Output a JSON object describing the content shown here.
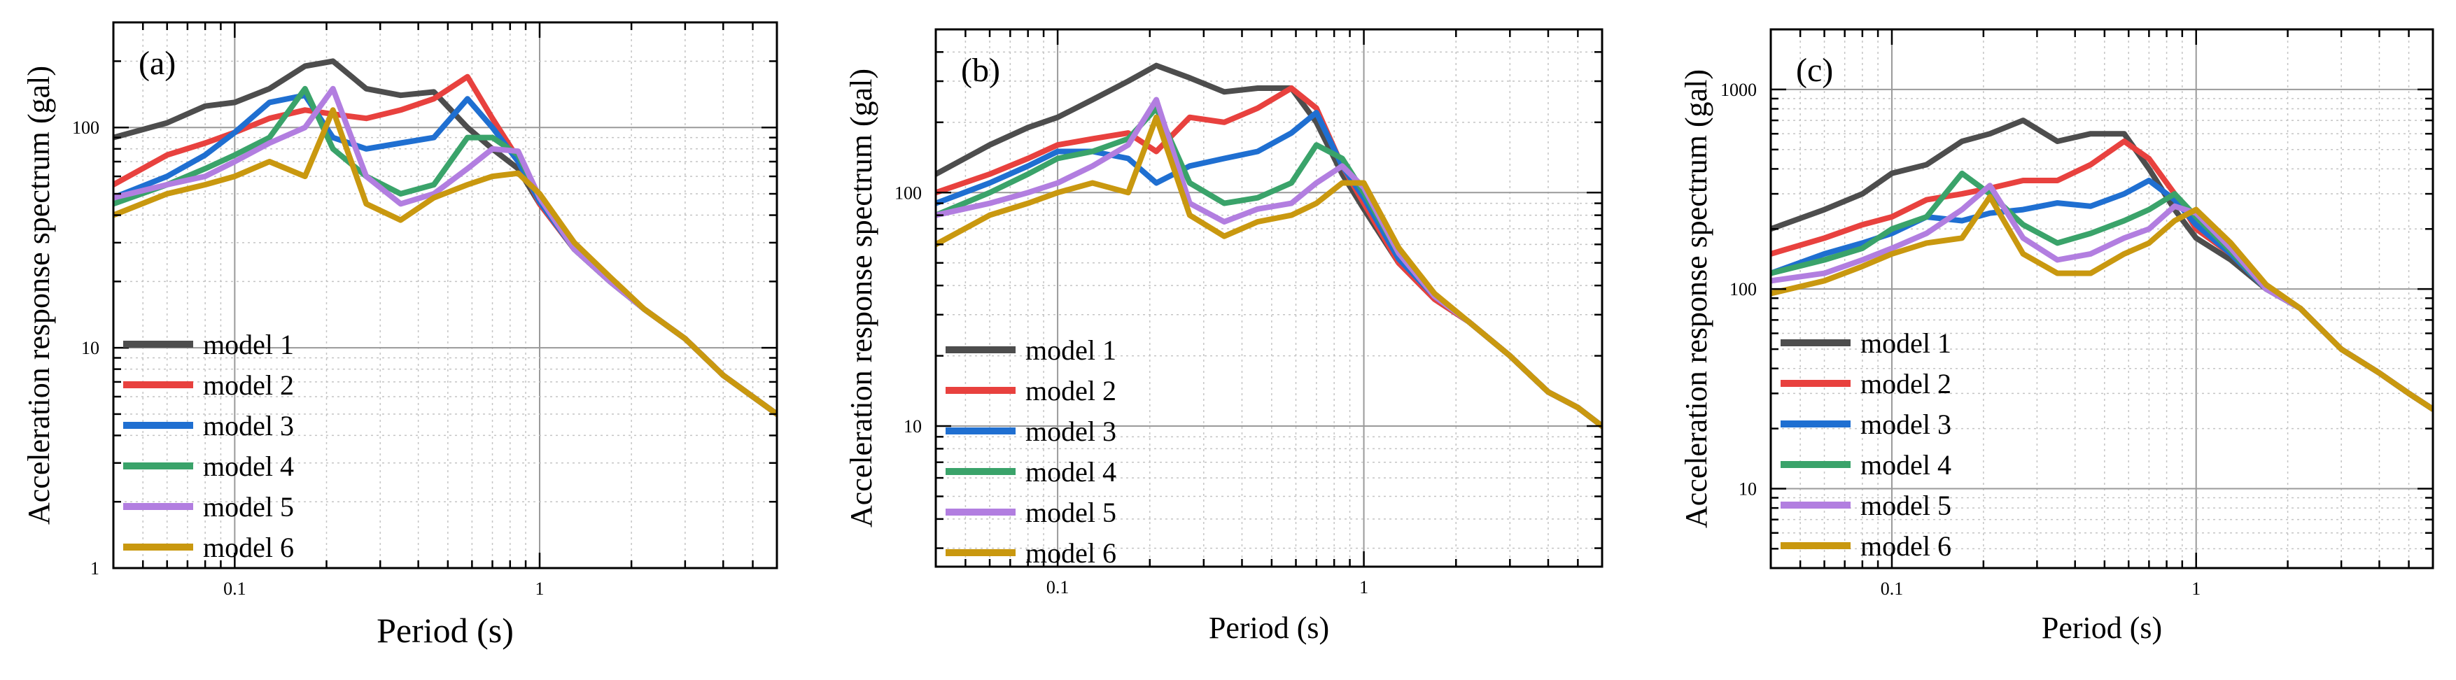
{
  "chart_data": [
    {
      "type": "line",
      "panel_label": "(a)",
      "xlabel": "Period (s)",
      "ylabel": "Acceleration response spectrum (gal)",
      "xscale": "log",
      "yscale": "log",
      "xlim": [
        0.04,
        6
      ],
      "ylim": [
        1,
        300
      ],
      "x_tick_labels": [
        "0.1",
        "1"
      ],
      "y_tick_labels": [
        "1",
        "10",
        "100"
      ],
      "legend_position": "lower-left",
      "x": [
        0.04,
        0.06,
        0.08,
        0.1,
        0.13,
        0.17,
        0.21,
        0.27,
        0.35,
        0.45,
        0.58,
        0.7,
        0.85,
        1.0,
        1.3,
        1.7,
        2.2,
        3.0,
        4.0,
        5.0,
        6.0
      ],
      "series": [
        {
          "name": "model 1",
          "color": "#4d4d4d",
          "values": [
            90,
            105,
            125,
            130,
            150,
            190,
            200,
            150,
            140,
            145,
            100,
            80,
            65,
            45,
            28,
            20,
            15,
            11,
            7.5,
            6,
            5
          ]
        },
        {
          "name": "model 2",
          "color": "#e8413e",
          "values": [
            55,
            75,
            85,
            95,
            110,
            120,
            115,
            110,
            120,
            135,
            170,
            110,
            72,
            45,
            28,
            20,
            15,
            11,
            7.5,
            6,
            5
          ]
        },
        {
          "name": "model 3",
          "color": "#1f6fd1",
          "values": [
            48,
            60,
            75,
            95,
            130,
            140,
            90,
            80,
            85,
            90,
            135,
            100,
            70,
            46,
            28,
            20,
            15,
            11,
            7.5,
            6,
            5
          ]
        },
        {
          "name": "model 4",
          "color": "#3aa36a",
          "values": [
            45,
            55,
            65,
            75,
            90,
            150,
            80,
            60,
            50,
            55,
            90,
            90,
            75,
            48,
            28,
            20,
            15,
            11,
            7.5,
            6,
            5
          ]
        },
        {
          "name": "model 5",
          "color": "#b27ee0",
          "values": [
            48,
            55,
            60,
            70,
            85,
            100,
            150,
            60,
            45,
            50,
            65,
            80,
            78,
            48,
            28,
            20,
            15,
            11,
            7.5,
            6,
            5
          ]
        },
        {
          "name": "model 6",
          "color": "#c9980f",
          "values": [
            40,
            50,
            55,
            60,
            70,
            60,
            120,
            45,
            38,
            48,
            55,
            60,
            62,
            50,
            30,
            21,
            15,
            11,
            7.5,
            6,
            5
          ]
        }
      ]
    },
    {
      "type": "line",
      "panel_label": "(b)",
      "xlabel": "Period (s)",
      "ylabel": "Acceleration response spectrum (gal)",
      "xscale": "log",
      "yscale": "log",
      "xlim": [
        0.04,
        6
      ],
      "ylim": [
        2.5,
        500
      ],
      "x_tick_labels": [
        "0.1",
        "1"
      ],
      "y_tick_labels": [
        "10",
        "100"
      ],
      "legend_position": "lower-left",
      "x": [
        0.04,
        0.06,
        0.08,
        0.1,
        0.13,
        0.17,
        0.21,
        0.27,
        0.35,
        0.45,
        0.58,
        0.7,
        0.85,
        1.0,
        1.3,
        1.7,
        2.2,
        3.0,
        4.0,
        5.0,
        6.0
      ],
      "series": [
        {
          "name": "model 1",
          "color": "#4d4d4d",
          "values": [
            120,
            160,
            190,
            210,
            250,
            300,
            350,
            310,
            270,
            280,
            280,
            200,
            120,
            85,
            50,
            35,
            28,
            20,
            14,
            12,
            10
          ]
        },
        {
          "name": "model 2",
          "color": "#e8413e",
          "values": [
            100,
            120,
            140,
            160,
            170,
            180,
            150,
            210,
            200,
            230,
            280,
            230,
            130,
            90,
            50,
            35,
            28,
            20,
            14,
            12,
            10
          ]
        },
        {
          "name": "model 3",
          "color": "#1f6fd1",
          "values": [
            90,
            110,
            130,
            150,
            150,
            140,
            110,
            130,
            140,
            150,
            180,
            220,
            130,
            95,
            52,
            36,
            28,
            20,
            14,
            12,
            10
          ]
        },
        {
          "name": "model 4",
          "color": "#3aa36a",
          "values": [
            80,
            100,
            120,
            140,
            150,
            170,
            230,
            110,
            90,
            95,
            110,
            160,
            140,
            100,
            55,
            36,
            28,
            20,
            14,
            12,
            10
          ]
        },
        {
          "name": "model 5",
          "color": "#b27ee0",
          "values": [
            80,
            90,
            100,
            110,
            130,
            160,
            250,
            90,
            75,
            85,
            90,
            110,
            130,
            105,
            55,
            36,
            28,
            20,
            14,
            12,
            10
          ]
        },
        {
          "name": "model 6",
          "color": "#c9980f",
          "values": [
            60,
            80,
            90,
            100,
            110,
            100,
            210,
            80,
            65,
            75,
            80,
            90,
            110,
            110,
            58,
            37,
            28,
            20,
            14,
            12,
            10
          ]
        }
      ]
    },
    {
      "type": "line",
      "panel_label": "(c)",
      "xlabel": "Period (s)",
      "ylabel": "Acceleration response spectrum (gal)",
      "xscale": "log",
      "yscale": "log",
      "xlim": [
        0.04,
        6
      ],
      "ylim": [
        4,
        2000
      ],
      "x_tick_labels": [
        "0.1",
        "1"
      ],
      "y_tick_labels": [
        "10",
        "100",
        "1000"
      ],
      "legend_position": "lower-left",
      "x": [
        0.04,
        0.06,
        0.08,
        0.1,
        0.13,
        0.17,
        0.21,
        0.27,
        0.35,
        0.45,
        0.58,
        0.7,
        0.85,
        1.0,
        1.3,
        1.7,
        2.2,
        3.0,
        4.0,
        5.0,
        6.0
      ],
      "series": [
        {
          "name": "model 1",
          "color": "#4d4d4d",
          "values": [
            200,
            250,
            300,
            380,
            420,
            550,
            600,
            700,
            550,
            600,
            600,
            400,
            250,
            180,
            140,
            100,
            80,
            50,
            38,
            30,
            25
          ]
        },
        {
          "name": "model 2",
          "color": "#e8413e",
          "values": [
            150,
            180,
            210,
            230,
            280,
            300,
            320,
            350,
            350,
            420,
            550,
            450,
            300,
            200,
            150,
            100,
            80,
            50,
            38,
            30,
            25
          ]
        },
        {
          "name": "model 3",
          "color": "#1f6fd1",
          "values": [
            120,
            150,
            170,
            190,
            230,
            220,
            240,
            250,
            270,
            260,
            300,
            350,
            280,
            210,
            150,
            100,
            80,
            50,
            38,
            30,
            25
          ]
        },
        {
          "name": "model 4",
          "color": "#3aa36a",
          "values": [
            120,
            140,
            160,
            200,
            230,
            380,
            300,
            210,
            170,
            190,
            220,
            250,
            300,
            230,
            155,
            100,
            80,
            50,
            38,
            30,
            25
          ]
        },
        {
          "name": "model 5",
          "color": "#b27ee0",
          "values": [
            110,
            120,
            140,
            160,
            190,
            250,
            330,
            180,
            140,
            150,
            180,
            200,
            260,
            240,
            160,
            100,
            80,
            50,
            38,
            30,
            25
          ]
        },
        {
          "name": "model 6",
          "color": "#c9980f",
          "values": [
            95,
            110,
            130,
            150,
            170,
            180,
            290,
            150,
            120,
            120,
            150,
            170,
            220,
            250,
            170,
            105,
            80,
            50,
            38,
            30,
            25
          ]
        }
      ]
    }
  ]
}
